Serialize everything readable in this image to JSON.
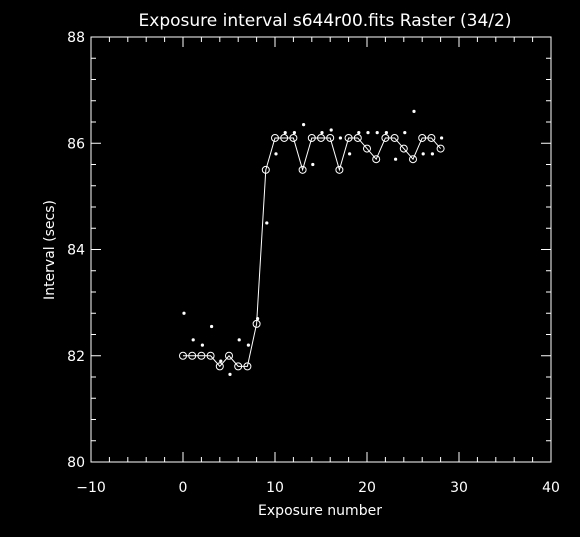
{
  "colors": {
    "background": "#000000",
    "foreground": "#ffffff"
  },
  "chart_data": {
    "type": "line",
    "title": "Exposure interval s644r00.fits  Raster (34/2)",
    "xlabel": "Exposure number",
    "ylabel": "Interval (secs)",
    "xlim": [
      -10,
      40
    ],
    "ylim": [
      80,
      88
    ],
    "x_major_ticks": [
      -10,
      0,
      10,
      20,
      30,
      40
    ],
    "y_major_ticks": [
      80,
      82,
      84,
      86,
      88
    ],
    "x_tick_labels": [
      "−10",
      "0",
      "10",
      "20",
      "30",
      "40"
    ],
    "y_tick_labels": [
      "80",
      "82",
      "84",
      "86",
      "88"
    ],
    "x_minor_step": 2,
    "y_minor_step": 0.4,
    "grid": false,
    "series": [
      {
        "marker": "open-circle-with-line",
        "x": [
          0,
          1,
          2,
          3,
          4,
          5,
          6,
          7,
          8,
          9,
          10,
          11,
          12,
          13,
          14,
          15,
          16,
          17,
          18,
          19,
          20,
          21,
          22,
          23,
          24,
          25,
          26,
          27,
          28
        ],
        "y": [
          82.0,
          82.0,
          82.0,
          82.0,
          81.8,
          82.0,
          81.8,
          81.8,
          82.6,
          85.5,
          86.1,
          86.1,
          86.1,
          85.5,
          86.1,
          86.1,
          86.1,
          85.5,
          86.1,
          86.1,
          85.9,
          85.7,
          86.1,
          86.1,
          85.9,
          85.7,
          86.1,
          86.1,
          85.9
        ]
      },
      {
        "marker": "dot",
        "x": [
          0,
          1,
          2,
          3,
          4,
          5,
          6,
          7,
          8,
          9,
          10,
          11,
          12,
          13,
          14,
          15,
          16,
          17,
          18,
          19,
          20,
          21,
          22,
          23,
          24,
          25,
          26,
          27,
          28
        ],
        "y": [
          82.8,
          82.3,
          82.2,
          82.55,
          81.9,
          81.65,
          82.3,
          82.2,
          82.7,
          84.5,
          85.8,
          86.2,
          86.2,
          86.35,
          85.6,
          86.2,
          86.25,
          86.1,
          85.8,
          86.2,
          86.2,
          86.2,
          86.2,
          85.7,
          86.2,
          86.6,
          85.8,
          85.8,
          86.1
        ]
      }
    ]
  }
}
